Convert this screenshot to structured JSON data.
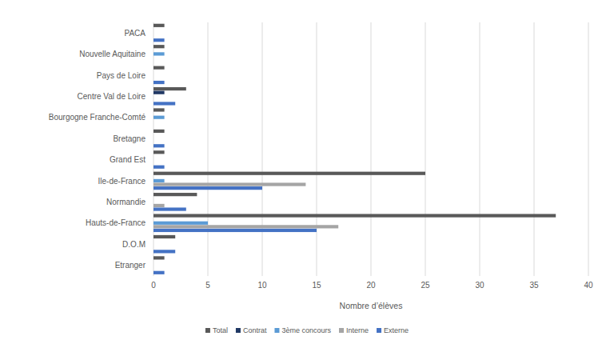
{
  "chart_data": {
    "type": "bar",
    "orientation": "horizontal",
    "grid": true,
    "legend": "bottom",
    "x_label": "Nombre d’élèves",
    "categories": [
      "PACA",
      "Nouvelle Aquitaine",
      "Pays de Loire",
      "Centre Val de Loire",
      "Bourgogne Franche-Comté",
      "Bretagne",
      "Grand Est",
      "Ile-de-France",
      "Normandie",
      "Hauts-de-France",
      "D.O.M",
      "Etranger"
    ],
    "xlim": [
      0,
      40
    ],
    "xticks": [
      0,
      5,
      10,
      15,
      20,
      25,
      30,
      35,
      40
    ],
    "series": [
      {
        "name": "Total",
        "color": "#595959",
        "values": [
          1,
          1,
          1,
          3,
          1,
          1,
          1,
          25,
          4,
          37,
          2,
          1
        ]
      },
      {
        "name": "Contrat",
        "color": "#203864",
        "values": [
          0,
          0,
          0,
          1,
          0,
          0,
          0,
          0,
          0,
          0,
          0,
          0
        ]
      },
      {
        "name": "3ème concours",
        "color": "#5b9bd5",
        "values": [
          0,
          1,
          0,
          0,
          1,
          0,
          0,
          1,
          0,
          5,
          0,
          0
        ]
      },
      {
        "name": "Interne",
        "color": "#a5a5a5",
        "values": [
          0,
          0,
          0,
          0,
          0,
          0,
          0,
          14,
          1,
          17,
          0,
          0
        ]
      },
      {
        "name": "Externe",
        "color": "#4472c4",
        "values": [
          1,
          0,
          1,
          2,
          0,
          1,
          1,
          10,
          3,
          15,
          2,
          1
        ]
      }
    ]
  }
}
